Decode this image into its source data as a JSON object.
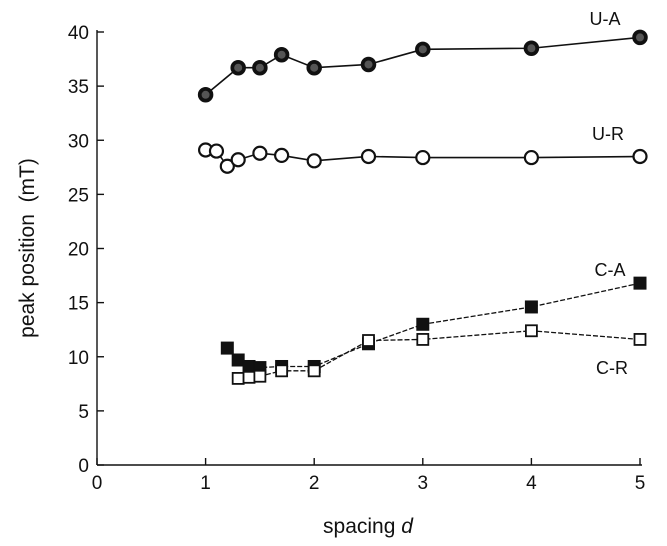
{
  "chart_data": {
    "type": "scatter",
    "title": "",
    "xlabel": "spacing",
    "xlabel_var": "d",
    "ylabel": "peak position  (mT)",
    "xlim": [
      0,
      5
    ],
    "ylim": [
      0,
      40
    ],
    "xticks": [
      0,
      1,
      2,
      3,
      4,
      5
    ],
    "yticks": [
      0,
      5,
      10,
      15,
      20,
      25,
      30,
      35,
      40
    ],
    "grid": false,
    "series": [
      {
        "name": "U-A",
        "marker": "circle-filled",
        "line": "solid",
        "x": [
          1.0,
          1.3,
          1.5,
          1.7,
          2.0,
          2.5,
          3.0,
          4.0,
          5.0
        ],
        "y": [
          34.2,
          36.7,
          36.7,
          37.9,
          36.7,
          37.0,
          38.4,
          38.5,
          39.5
        ]
      },
      {
        "name": "U-R",
        "marker": "circle-open",
        "line": "solid",
        "x": [
          1.0,
          1.1,
          1.2,
          1.3,
          1.5,
          1.7,
          2.0,
          2.5,
          3.0,
          4.0,
          5.0
        ],
        "y": [
          29.1,
          29.0,
          27.6,
          28.2,
          28.8,
          28.6,
          28.1,
          28.5,
          28.4,
          28.4,
          28.5
        ]
      },
      {
        "name": "C-A",
        "marker": "square-filled",
        "line": "dashed",
        "x": [
          1.2,
          1.3,
          1.4,
          1.5,
          1.7,
          2.0,
          2.5,
          3.0,
          4.0,
          5.0
        ],
        "y": [
          10.8,
          9.7,
          9.1,
          9.0,
          9.1,
          9.1,
          11.2,
          13.0,
          14.6,
          16.8
        ]
      },
      {
        "name": "C-R",
        "marker": "square-open",
        "line": "dashed",
        "x": [
          1.3,
          1.4,
          1.5,
          1.7,
          2.0,
          2.5,
          3.0,
          4.0,
          5.0
        ],
        "y": [
          8.0,
          8.1,
          8.2,
          8.7,
          8.7,
          11.5,
          11.6,
          12.4,
          11.6
        ]
      }
    ]
  }
}
